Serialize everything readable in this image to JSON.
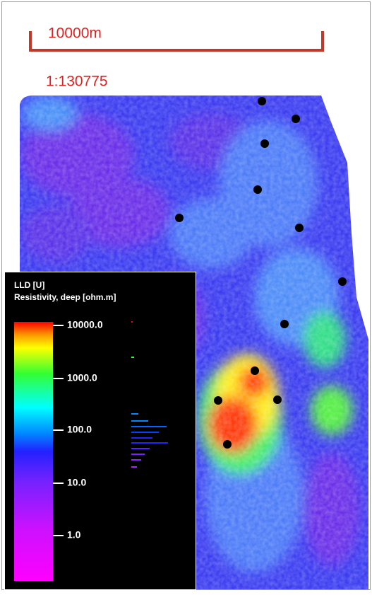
{
  "scale_bar": {
    "label": "10000m"
  },
  "scale_ratio": "1:130775",
  "legend": {
    "title": "LLD [U]",
    "subtitle": "Resistivity, deep [ohm.m]",
    "ticks": [
      "10000.0",
      "1000.0",
      "100.0",
      "10.0",
      "1.0"
    ]
  }
}
